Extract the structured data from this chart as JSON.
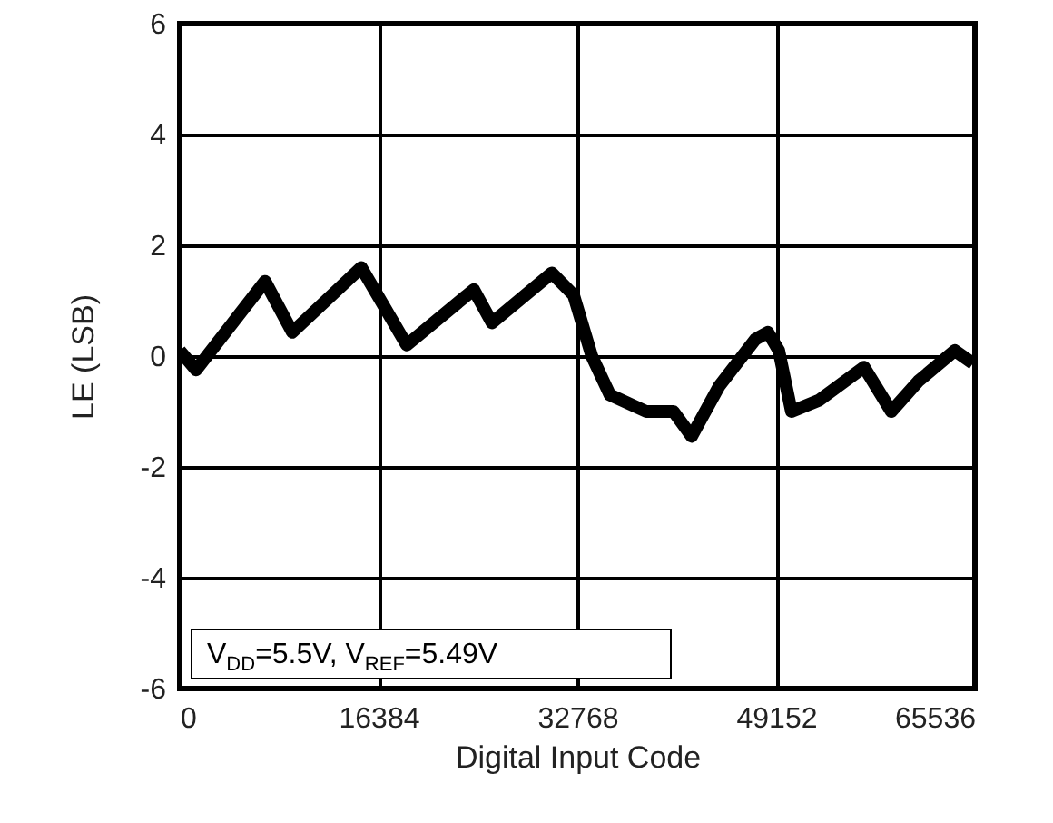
{
  "chart_data": {
    "type": "line",
    "xlabel": "Digital Input Code",
    "ylabel": "LE (LSB)",
    "x": [
      0,
      1346,
      7031,
      9275,
      14960,
      18700,
      24235,
      25731,
      30668,
      32464,
      33960,
      35456,
      38448,
      40692,
      42188,
      44432,
      47424,
      48471,
      49369,
      50416,
      52660,
      56400,
      58644,
      60888,
      63880,
      65375
    ],
    "series": [
      {
        "color": "#000000",
        "values": [
          0.1,
          -0.25,
          1.35,
          0.43,
          1.6,
          0.2,
          1.2,
          0.6,
          1.5,
          1.1,
          0,
          -0.7,
          -1.0,
          -1.0,
          -1.45,
          -0.55,
          0.3,
          0.43,
          0.1,
          -1.0,
          -0.8,
          -0.2,
          -1.0,
          -0.45,
          0.1,
          -0.13
        ]
      }
    ],
    "xlim": [
      0,
      65536
    ],
    "xticks": [
      0,
      16384,
      32768,
      49152,
      65536
    ],
    "ylim": [
      -6,
      6
    ],
    "yticks": [
      -6,
      -4,
      -2,
      0,
      2,
      4,
      6
    ],
    "grid": true,
    "legend": false,
    "marker": "none",
    "line_style": "solid",
    "annotations": [
      "V$_{DD}$=5.5V, V$_{REF}$=5.49V"
    ]
  }
}
